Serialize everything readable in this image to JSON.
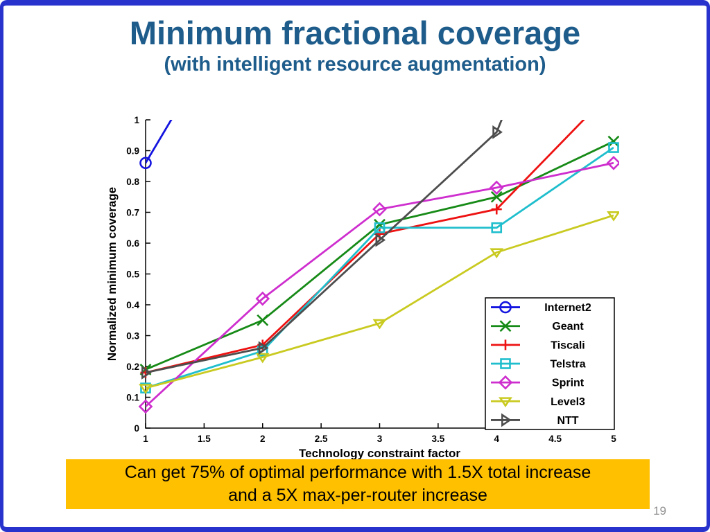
{
  "slide": {
    "title": "Minimum fractional coverage",
    "subtitle": "(with intelligent resource augmentation)",
    "banner_line1": "Can get 75% of optimal performance with 1.5X total increase",
    "banner_line2": "and a 5X max-per-router increase",
    "page_number": "19",
    "colors": {
      "title_text": "#1E5C8B",
      "banner_bg": "#FFC000",
      "frame_border": "#2733CC"
    }
  },
  "chart_data": {
    "type": "line",
    "title": "",
    "xlabel": "Technology constraint factor",
    "ylabel": "Normalized minimum coverage",
    "xlim": [
      1,
      5
    ],
    "ylim": [
      0,
      1
    ],
    "xticks": [
      1,
      1.5,
      2,
      2.5,
      3,
      3.5,
      4,
      4.5,
      5
    ],
    "yticks": [
      0,
      0.1,
      0.2,
      0.3,
      0.4,
      0.5,
      0.6,
      0.7,
      0.8,
      0.9,
      1
    ],
    "grid": false,
    "legend_position": "inside lower right",
    "clip_note": "y values above 1 are clipped at the top axis",
    "series": [
      {
        "name": "Internet2",
        "color": "#1414E0",
        "marker": "circle",
        "x": [
          1,
          2
        ],
        "y": [
          0.86,
          1.5
        ]
      },
      {
        "name": "Geant",
        "color": "#168A16",
        "marker": "x",
        "x": [
          1,
          2,
          3,
          4,
          5
        ],
        "y": [
          0.19,
          0.35,
          0.66,
          0.75,
          0.93
        ]
      },
      {
        "name": "Tiscali",
        "color": "#EE1111",
        "marker": "plus",
        "x": [
          1,
          2,
          3,
          4,
          5
        ],
        "y": [
          0.18,
          0.27,
          0.63,
          0.71,
          1.1
        ]
      },
      {
        "name": "Telstra",
        "color": "#1FBECD",
        "marker": "square",
        "x": [
          1,
          2,
          3,
          4,
          5
        ],
        "y": [
          0.13,
          0.25,
          0.65,
          0.65,
          0.91
        ]
      },
      {
        "name": "Sprint",
        "color": "#CE2ECE",
        "marker": "diamond",
        "x": [
          1,
          2,
          3,
          4,
          5
        ],
        "y": [
          0.07,
          0.42,
          0.71,
          0.78,
          0.86
        ]
      },
      {
        "name": "Level3",
        "color": "#C9CA20",
        "marker": "triangle-down",
        "x": [
          1,
          2,
          3,
          4,
          5
        ],
        "y": [
          0.13,
          0.23,
          0.34,
          0.57,
          0.69
        ]
      },
      {
        "name": "NTT",
        "color": "#4D4D4D",
        "marker": "triangle-right",
        "x": [
          1,
          2,
          3,
          4,
          5
        ],
        "y": [
          0.18,
          0.26,
          0.61,
          0.96,
          1.9
        ]
      }
    ]
  }
}
